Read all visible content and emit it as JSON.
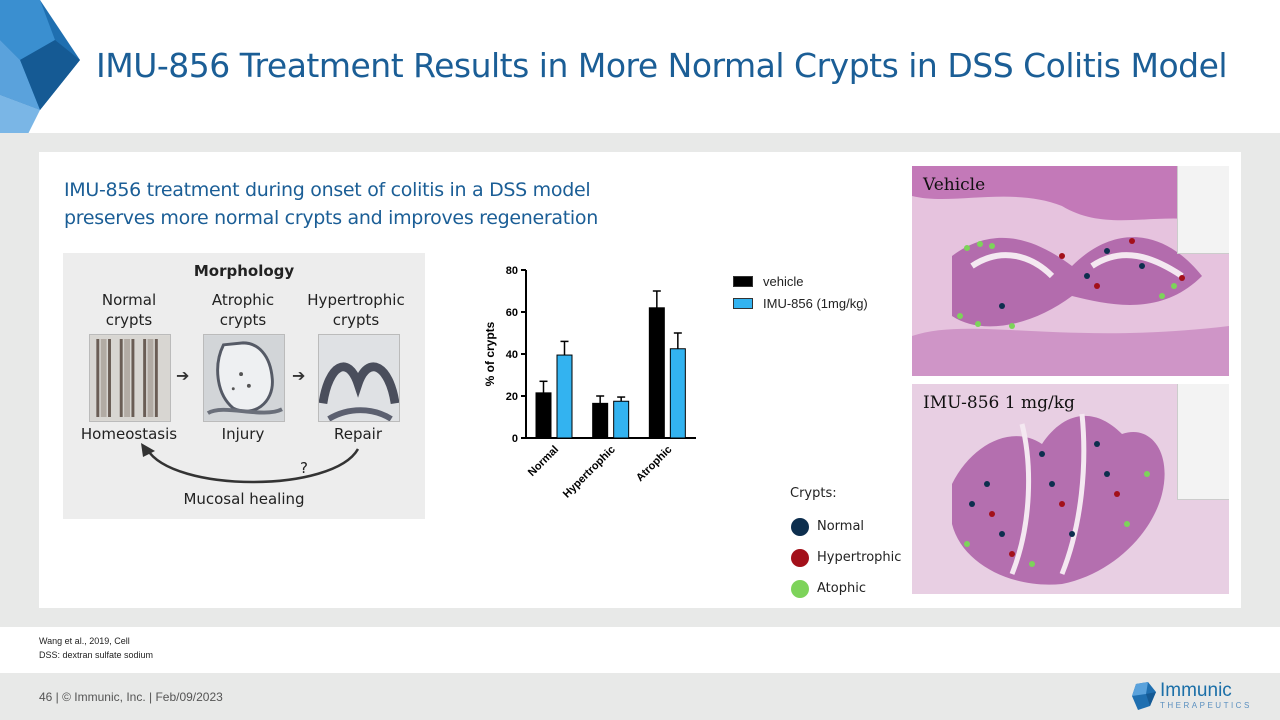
{
  "slide": {
    "title": "IMU-856 Treatment Results in More Normal Crypts in DSS Colitis Model",
    "subtitle_line1": "IMU-856 treatment during onset of colitis in a DSS model",
    "subtitle_line2": "preserves more normal crypts and improves regeneration"
  },
  "morphology": {
    "title": "Morphology",
    "columns": [
      {
        "label_line1": "Normal",
        "label_line2": "crypts",
        "stage": "Homeostasis"
      },
      {
        "label_line1": "Atrophic",
        "label_line2": "crypts",
        "stage": "Injury"
      },
      {
        "label_line1": "Hypertrophic",
        "label_line2": "crypts",
        "stage": "Repair"
      }
    ],
    "question": "?",
    "healing": "Mucosal healing"
  },
  "chart_data": {
    "type": "bar",
    "categories": [
      "Normal",
      "Hypertrophic",
      "Atrophic"
    ],
    "series": [
      {
        "name": "vehicle",
        "values": [
          21.5,
          16.5,
          62
        ],
        "errors": [
          5.5,
          3.5,
          8
        ],
        "color": "#000000"
      },
      {
        "name": "IMU-856 (1mg/kg)",
        "values": [
          39.5,
          17.5,
          42.5
        ],
        "errors": [
          6.5,
          2,
          7.5
        ],
        "color": "#33b3f0"
      }
    ],
    "ylabel": "% of crypts",
    "ylim": [
      0,
      80
    ],
    "yticks": [
      "0",
      "20",
      "40",
      "60",
      "80"
    ],
    "legend_position": "right"
  },
  "crypts_legend": {
    "title": "Crypts:",
    "items": [
      {
        "label": "Normal",
        "color": "#0d2e4e"
      },
      {
        "label": "Hypertrophic",
        "color": "#a3101a"
      },
      {
        "label": "Atophic",
        "color": "#7dd35a"
      }
    ]
  },
  "images": {
    "top_label": "Vehicle",
    "bottom_label": "IMU-856 1 mg/kg"
  },
  "references": {
    "line1": "Wang et al., 2019, Cell",
    "line2": "DSS: dextran sulfate sodium"
  },
  "footer": {
    "text": "46  |  © Immunic, Inc.  |  Feb/09/2023",
    "logo_name": "Immunic",
    "logo_sub": "THERAPEUTICS"
  }
}
